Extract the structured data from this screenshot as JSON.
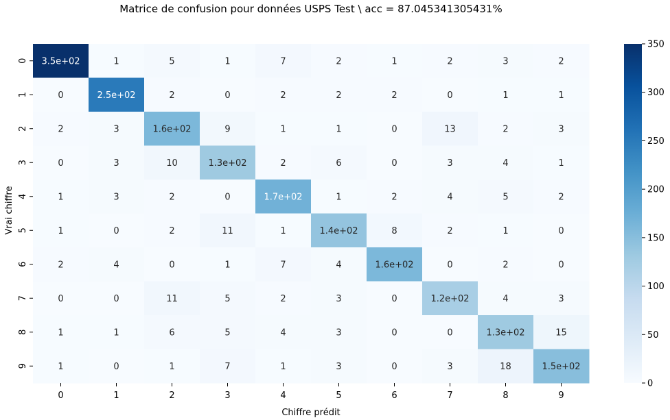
{
  "chart_data": {
    "type": "heatmap",
    "title": "Matrice de confusion pour données USPS Test \\ acc = 87.045341305431%",
    "xlabel": "Chiffre prédit",
    "ylabel": "Vrai chiffre",
    "x_categories": [
      "0",
      "1",
      "2",
      "3",
      "4",
      "5",
      "6",
      "7",
      "8",
      "9"
    ],
    "y_categories": [
      "0",
      "1",
      "2",
      "3",
      "4",
      "5",
      "6",
      "7",
      "8",
      "9"
    ],
    "values": [
      [
        350,
        1,
        5,
        1,
        7,
        2,
        1,
        2,
        3,
        2
      ],
      [
        0,
        250,
        2,
        0,
        2,
        2,
        2,
        0,
        1,
        1
      ],
      [
        2,
        3,
        160,
        9,
        1,
        1,
        0,
        13,
        2,
        3
      ],
      [
        0,
        3,
        10,
        130,
        2,
        6,
        0,
        3,
        4,
        1
      ],
      [
        1,
        3,
        2,
        0,
        170,
        1,
        2,
        4,
        5,
        2
      ],
      [
        1,
        0,
        2,
        11,
        1,
        140,
        8,
        2,
        1,
        0
      ],
      [
        2,
        4,
        0,
        1,
        7,
        4,
        160,
        0,
        2,
        0
      ],
      [
        0,
        0,
        11,
        5,
        2,
        3,
        0,
        120,
        4,
        3
      ],
      [
        1,
        1,
        6,
        5,
        4,
        3,
        0,
        0,
        130,
        15
      ],
      [
        1,
        0,
        1,
        7,
        1,
        3,
        0,
        3,
        18,
        150
      ]
    ],
    "annotations": [
      [
        "3.5e+02",
        "1",
        "5",
        "1",
        "7",
        "2",
        "1",
        "2",
        "3",
        "2"
      ],
      [
        "0",
        "2.5e+02",
        "2",
        "0",
        "2",
        "2",
        "2",
        "0",
        "1",
        "1"
      ],
      [
        "2",
        "3",
        "1.6e+02",
        "9",
        "1",
        "1",
        "0",
        "13",
        "2",
        "3"
      ],
      [
        "0",
        "3",
        "10",
        "1.3e+02",
        "2",
        "6",
        "0",
        "3",
        "4",
        "1"
      ],
      [
        "1",
        "3",
        "2",
        "0",
        "1.7e+02",
        "1",
        "2",
        "4",
        "5",
        "2"
      ],
      [
        "1",
        "0",
        "2",
        "11",
        "1",
        "1.4e+02",
        "8",
        "2",
        "1",
        "0"
      ],
      [
        "2",
        "4",
        "0",
        "1",
        "7",
        "4",
        "1.6e+02",
        "0",
        "2",
        "0"
      ],
      [
        "0",
        "0",
        "11",
        "5",
        "2",
        "3",
        "0",
        "1.2e+02",
        "4",
        "3"
      ],
      [
        "1",
        "1",
        "6",
        "5",
        "4",
        "3",
        "0",
        "0",
        "1.3e+02",
        "15"
      ],
      [
        "1",
        "0",
        "1",
        "7",
        "1",
        "3",
        "0",
        "3",
        "18",
        "1.5e+02"
      ]
    ],
    "colorbar": {
      "min": 0,
      "max": 350,
      "ticks": [
        0,
        50,
        100,
        150,
        200,
        250,
        300,
        350
      ]
    },
    "colormap": "Blues",
    "grid": false
  }
}
